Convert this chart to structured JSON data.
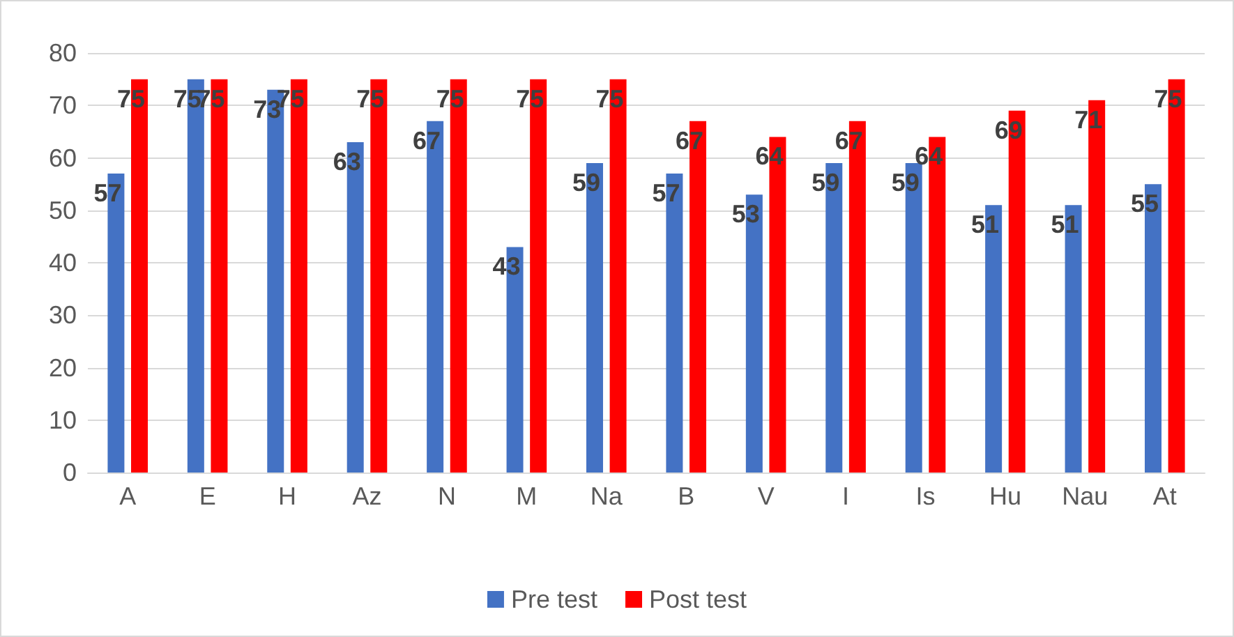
{
  "chart_data": {
    "type": "bar",
    "categories": [
      "A",
      "E",
      "H",
      "Az",
      "N",
      "M",
      "Na",
      "B",
      "V",
      "I",
      "Is",
      "Hu",
      "Nau",
      "At"
    ],
    "series": [
      {
        "name": "Pre test",
        "color": "#4472c4",
        "values": [
          57,
          75,
          73,
          63,
          67,
          43,
          59,
          57,
          53,
          59,
          59,
          51,
          51,
          55
        ]
      },
      {
        "name": "Post test",
        "color": "#ff0000",
        "values": [
          75,
          75,
          75,
          75,
          75,
          75,
          75,
          67,
          64,
          67,
          64,
          69,
          71,
          75
        ]
      }
    ],
    "ylim": [
      0,
      80
    ],
    "yticks": [
      0,
      10,
      20,
      30,
      40,
      50,
      60,
      70,
      80
    ],
    "grid": "y",
    "legend": "bottom",
    "data_labels": true
  }
}
